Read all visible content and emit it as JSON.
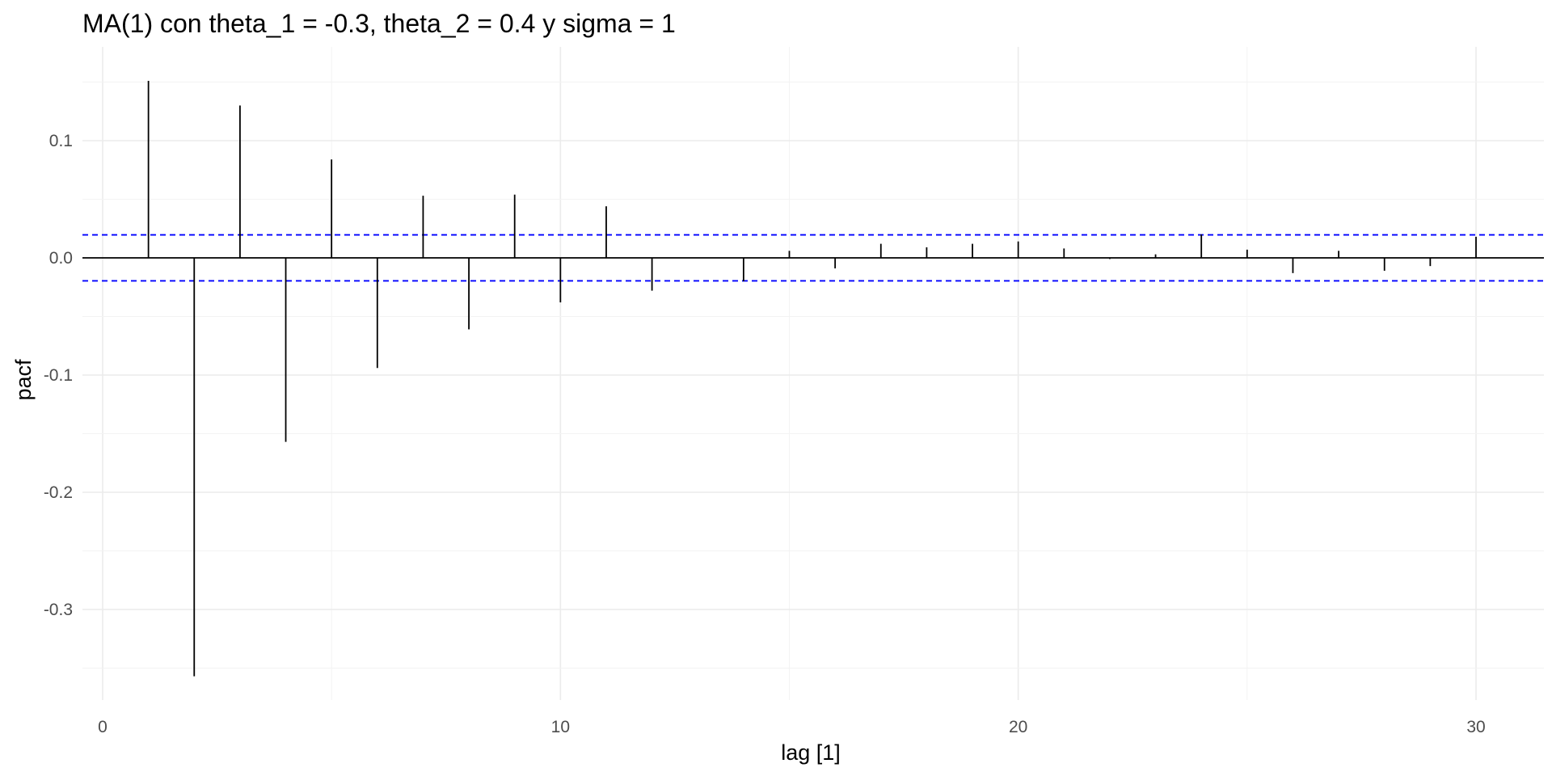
{
  "chart_data": {
    "type": "bar",
    "title": "MA(1) con theta_1 = -0.3, theta_2 = 0.4 y sigma = 1",
    "xlabel": "lag [1]",
    "ylabel": "pacf",
    "x_ticks": [
      0,
      10,
      20,
      30
    ],
    "y_ticks": [
      0.1,
      0.0,
      -0.1,
      -0.2,
      -0.3
    ],
    "y_tick_labels": [
      "0.1",
      "0.0",
      "-0.1",
      "-0.2",
      "-0.3"
    ],
    "xlim": [
      -0.5,
      31.5
    ],
    "ylim": [
      -0.38,
      0.16
    ],
    "grid": true,
    "confidence_bound": 0.0196,
    "colors": {
      "bars": "#000000",
      "bounds": "#0000ff",
      "zero_line": "#000000"
    },
    "series": [
      {
        "x": [
          1,
          2,
          3,
          4,
          5,
          6,
          7,
          8,
          9,
          10,
          11,
          12,
          13,
          14,
          15,
          16,
          17,
          18,
          19,
          20,
          21,
          22,
          23,
          24,
          25,
          26,
          27,
          28,
          29,
          30
        ],
        "values": [
          0.151,
          -0.357,
          0.13,
          -0.157,
          0.084,
          -0.094,
          0.053,
          -0.061,
          0.054,
          -0.038,
          0.044,
          -0.028,
          0.0,
          -0.02,
          0.006,
          -0.009,
          0.012,
          0.009,
          0.012,
          0.014,
          0.008,
          -0.001,
          0.003,
          0.02,
          0.007,
          -0.013,
          0.006,
          -0.011,
          -0.007,
          0.018
        ]
      }
    ]
  }
}
